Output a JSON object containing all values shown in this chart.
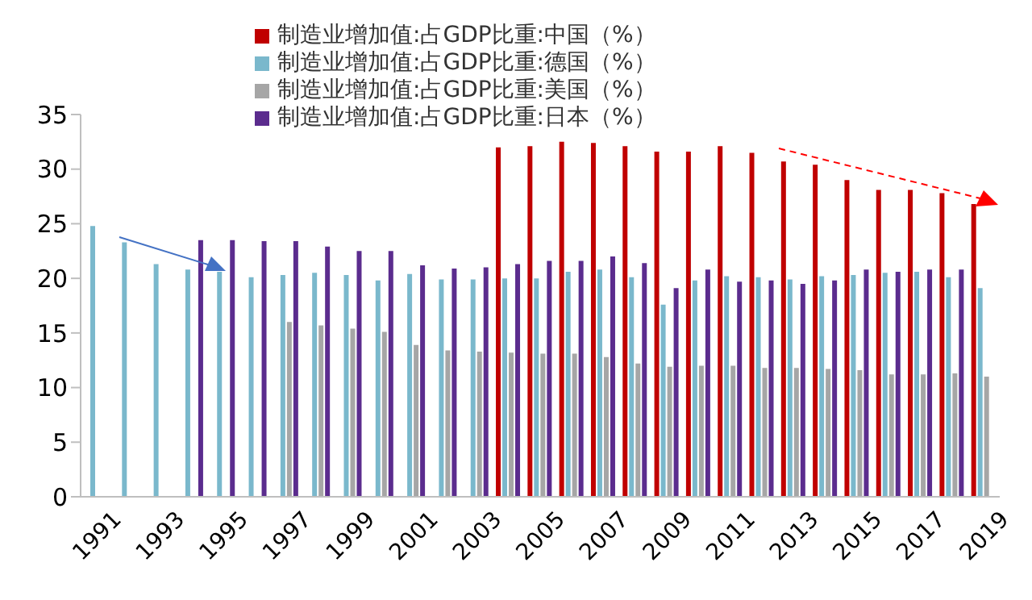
{
  "chart_data": {
    "type": "bar",
    "categories": [
      "1991",
      null,
      "1993",
      null,
      "1995",
      null,
      "1997",
      null,
      "1999",
      null,
      "2001",
      null,
      "2003",
      null,
      "2005",
      null,
      "2007",
      null,
      "2009",
      null,
      "2011",
      null,
      "2013",
      null,
      "2015",
      null,
      "2017",
      null,
      "2019"
    ],
    "series": [
      {
        "name": "制造业增加值:占GDP比重:中国（%）",
        "color": "#c00000",
        "values": [
          null,
          null,
          null,
          null,
          null,
          null,
          null,
          null,
          null,
          null,
          null,
          null,
          null,
          32.0,
          32.1,
          32.5,
          32.4,
          32.1,
          31.6,
          31.6,
          32.1,
          31.5,
          30.7,
          30.4,
          29.0,
          28.1,
          28.1,
          27.8,
          26.8
        ]
      },
      {
        "name": "制造业增加值:占GDP比重:德国（%）",
        "color": "#7ab8cc",
        "values": [
          24.8,
          23.3,
          21.3,
          20.8,
          20.6,
          20.1,
          20.3,
          20.5,
          20.3,
          19.8,
          20.4,
          19.9,
          19.9,
          20.0,
          20.0,
          20.6,
          20.8,
          20.1,
          17.6,
          19.8,
          20.2,
          20.1,
          19.9,
          20.2,
          20.3,
          20.5,
          20.6,
          20.1,
          19.1
        ]
      },
      {
        "name": "制造业增加值:占GDP比重:美国（%）",
        "color": "#a6a6a6",
        "values": [
          null,
          null,
          null,
          null,
          null,
          null,
          16.0,
          15.7,
          15.4,
          15.1,
          13.9,
          13.4,
          13.3,
          13.2,
          13.1,
          13.1,
          12.8,
          12.2,
          11.9,
          12.0,
          12.0,
          11.8,
          11.8,
          11.7,
          11.6,
          11.2,
          11.2,
          11.3,
          11.0
        ]
      },
      {
        "name": "制造业增加值:占GDP比重:日本（%）",
        "color": "#5b2c8e",
        "values": [
          null,
          null,
          null,
          23.5,
          23.5,
          23.4,
          23.4,
          22.9,
          22.5,
          22.5,
          21.2,
          20.9,
          21.0,
          21.3,
          21.6,
          21.6,
          22.0,
          21.4,
          19.1,
          20.8,
          19.7,
          19.8,
          19.5,
          19.8,
          20.8,
          20.6,
          20.8,
          20.8,
          null
        ]
      }
    ],
    "ylim": [
      0,
      35
    ],
    "yticks": [
      0,
      5,
      10,
      15,
      20,
      25,
      30,
      35
    ],
    "grid": false,
    "legend": "top"
  }
}
